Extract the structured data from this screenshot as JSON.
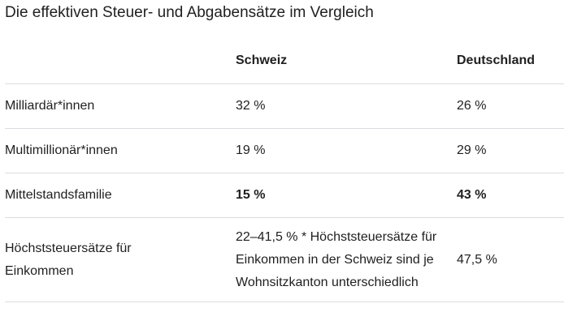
{
  "title": "Die effektiven Steuer- und Abgabensätze im Vergleich",
  "columns": [
    "",
    "Schweiz",
    "Deutschland"
  ],
  "rows": [
    {
      "label": "Milliardär*innen",
      "ch": "32 %",
      "de": "26 %"
    },
    {
      "label": "Multimillionär*innen",
      "ch": "19 %",
      "de": "29 %"
    },
    {
      "label": "Mittelstandsfamilie",
      "ch": "15 %",
      "de": "43 %"
    },
    {
      "label": "Höchststeuersätze für Einkommen",
      "ch": "22–41,5 % * Höchststeuersätze für Einkommen in der Schweiz sind je Wohnsitzkanton unterschiedlich",
      "de": "47,5 %"
    }
  ]
}
